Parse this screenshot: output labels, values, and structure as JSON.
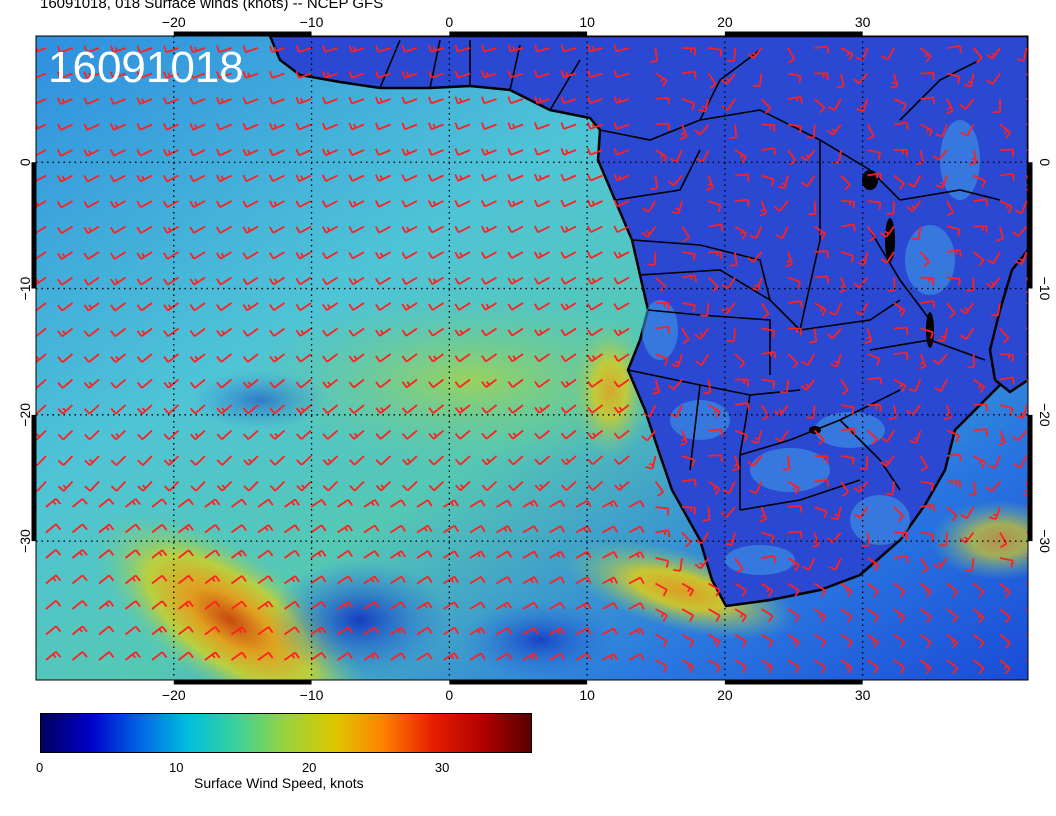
{
  "title": "16091018, 018 Surface winds (knots) -- NCEP GFS",
  "stamp": "16091018",
  "map": {
    "lon_range": [
      -30,
      42
    ],
    "lat_range": [
      -41,
      10
    ],
    "lon_ticks": [
      "−20",
      "−10",
      "0",
      "10",
      "20",
      "30"
    ],
    "lat_ticks": [
      "0",
      "−10",
      "−20",
      "−30"
    ],
    "barb_color": "#ff2020",
    "coast_color": "#000000"
  },
  "colorbar": {
    "label": "Surface Wind Speed, knots",
    "ticks": [
      "0",
      "10",
      "20",
      "30"
    ],
    "range": [
      0,
      37
    ],
    "colors": [
      "#00005f",
      "#0000c8",
      "#0064e6",
      "#00bede",
      "#3cd29a",
      "#9ad23c",
      "#dcc800",
      "#ff8000",
      "#e61e00",
      "#b40000",
      "#5a0000"
    ]
  }
}
